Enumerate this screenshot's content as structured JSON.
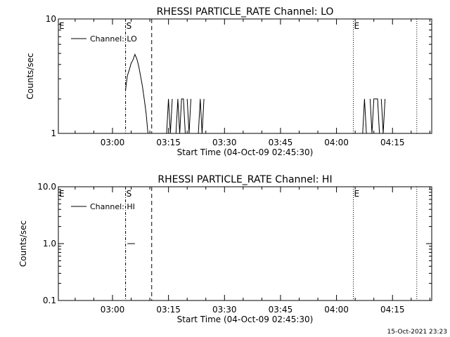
{
  "chart_data": [
    {
      "type": "line",
      "title": "RHESSI PARTICLE_RATE Channel: LO",
      "xlabel": "Start Time (04-Oct-09 02:45:30)",
      "ylabel": "Counts/sec",
      "yscale": "log",
      "ylim": [
        1,
        10
      ],
      "y_tick_labels": [
        {
          "value": 1,
          "label": "1"
        },
        {
          "value": 10,
          "label": "10"
        }
      ],
      "xlim": [
        "02:45:30",
        "04:25:30"
      ],
      "x_tick_labels": [
        "03:00",
        "03:15",
        "03:30",
        "03:45",
        "04:00",
        "04:15"
      ],
      "legend": {
        "entries": [
          "Channel: LO"
        ],
        "position": "top-left"
      },
      "markers": [
        {
          "label": "E",
          "time": "02:45:30",
          "style": "none"
        },
        {
          "label": "S",
          "time": "03:03:30",
          "style": "dashdot"
        },
        {
          "label": "",
          "time": "03:10:30",
          "style": "dashed"
        },
        {
          "label": "E",
          "time": "04:04:30",
          "style": "dotted"
        },
        {
          "label": "",
          "time": "04:21:30",
          "style": "dotted"
        }
      ],
      "series": [
        {
          "name": "Channel: LO",
          "x": [
            "03:03:30",
            "03:03:45",
            "03:04:00",
            "03:04:30",
            "03:05:00",
            "03:05:30",
            "03:06:00",
            "03:06:30",
            "03:07:00",
            "03:07:30",
            "03:08:00",
            "03:08:30",
            "03:09:00",
            "03:09:30"
          ],
          "y": [
            2.4,
            2.8,
            3.2,
            3.6,
            4.1,
            4.4,
            4.9,
            4.5,
            3.9,
            3.2,
            2.6,
            2.0,
            1.5,
            1.0
          ],
          "segments": [
            {
              "x": [
                "03:14:30",
                "03:15:00",
                "03:15:30",
                "03:16:00"
              ],
              "y": [
                1,
                2,
                1,
                2
              ]
            },
            {
              "x": [
                "03:17:00",
                "03:17:30",
                "03:18:00",
                "03:18:30",
                "03:19:00",
                "03:19:30"
              ],
              "y": [
                1,
                2,
                1,
                2,
                2,
                1
              ]
            },
            {
              "x": [
                "03:20:00",
                "03:20:30",
                "03:21:00"
              ],
              "y": [
                2,
                1,
                2
              ]
            },
            {
              "x": [
                "03:23:00",
                "03:23:30",
                "03:24:00",
                "03:24:30"
              ],
              "y": [
                1,
                2,
                1,
                2
              ]
            },
            {
              "x": [
                "04:07:00",
                "04:07:30",
                "04:08:00"
              ],
              "y": [
                1,
                2,
                1
              ]
            },
            {
              "x": [
                "04:09:00",
                "04:09:30",
                "04:10:00",
                "04:10:30",
                "04:11:00",
                "04:11:30"
              ],
              "y": [
                2,
                1,
                2,
                2,
                2,
                1
              ]
            },
            {
              "x": [
                "04:12:00",
                "04:12:30",
                "04:13:00"
              ],
              "y": [
                2,
                1,
                2
              ]
            }
          ]
        }
      ]
    },
    {
      "type": "line",
      "title": "RHESSI PARTICLE_RATE Channel: HI",
      "xlabel": "Start Time (04-Oct-09 02:45:30)",
      "ylabel": "Counts/sec",
      "yscale": "log",
      "ylim": [
        0.1,
        10
      ],
      "y_tick_labels": [
        {
          "value": 0.1,
          "label": "0.1"
        },
        {
          "value": 1,
          "label": "1.0"
        },
        {
          "value": 10,
          "label": "10.0"
        }
      ],
      "xlim": [
        "02:45:30",
        "04:25:30"
      ],
      "x_tick_labels": [
        "03:00",
        "03:15",
        "03:30",
        "03:45",
        "04:00",
        "04:15"
      ],
      "legend": {
        "entries": [
          "Channel: HI"
        ],
        "position": "top-left"
      },
      "markers": [
        {
          "label": "E",
          "time": "02:45:30",
          "style": "none"
        },
        {
          "label": "S",
          "time": "03:03:30",
          "style": "dashdot"
        },
        {
          "label": "",
          "time": "03:10:30",
          "style": "dashed"
        },
        {
          "label": "E",
          "time": "04:04:30",
          "style": "dotted"
        },
        {
          "label": "",
          "time": "04:21:30",
          "style": "dotted"
        }
      ],
      "series": [
        {
          "name": "Channel: HI",
          "x": [
            "03:04:00",
            "03:06:00"
          ],
          "y": [
            1.0,
            1.0
          ]
        }
      ]
    }
  ],
  "footer_timestamp": "15-Oct-2021 23:23"
}
